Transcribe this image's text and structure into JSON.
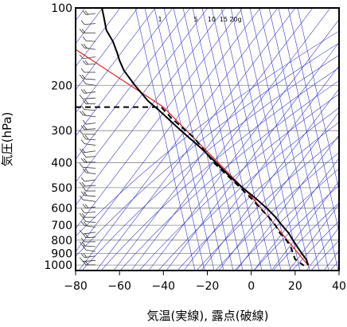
{
  "chart_data": {
    "type": "line",
    "xlabel": "気温(実線), 露点(破線)",
    "ylabel": "気圧(hPa)",
    "xlim": [
      -80,
      40
    ],
    "ylim": [
      1050,
      100
    ],
    "y_scale": "log",
    "x_ticks": [
      -80,
      -60,
      -40,
      -20,
      0,
      20,
      40
    ],
    "y_ticks": [
      100,
      200,
      300,
      400,
      500,
      600,
      700,
      800,
      900,
      1000
    ],
    "mixing_ratio_labels": [
      "1",
      "5",
      "10",
      "15",
      "20g"
    ],
    "colors": {
      "isopleths": "#3a3acc",
      "reference": "#e02020",
      "profile": "#000000",
      "grid": "#888888"
    },
    "series": [
      {
        "style": "solid",
        "points": [
          {
            "t": -68,
            "p": 100
          },
          {
            "t": -67,
            "p": 110
          },
          {
            "t": -66,
            "p": 122
          },
          {
            "t": -63,
            "p": 135
          },
          {
            "t": -61,
            "p": 150
          },
          {
            "t": -60,
            "p": 160
          },
          {
            "t": -58,
            "p": 175
          },
          {
            "t": -53,
            "p": 200
          },
          {
            "t": -47,
            "p": 230
          },
          {
            "t": -42,
            "p": 250
          },
          {
            "t": -32,
            "p": 300
          },
          {
            "t": -23,
            "p": 350
          },
          {
            "t": -16,
            "p": 400
          },
          {
            "t": -10,
            "p": 450
          },
          {
            "t": -4,
            "p": 500
          },
          {
            "t": 2,
            "p": 550
          },
          {
            "t": 7,
            "p": 600
          },
          {
            "t": 11,
            "p": 650
          },
          {
            "t": 14,
            "p": 700
          },
          {
            "t": 17,
            "p": 750
          },
          {
            "t": 19,
            "p": 800
          },
          {
            "t": 21,
            "p": 850
          },
          {
            "t": 23,
            "p": 900
          },
          {
            "t": 25,
            "p": 950
          },
          {
            "t": 26,
            "p": 1000
          }
        ]
      },
      {
        "style": "dashed",
        "points": [
          {
            "t": -80,
            "p": 243
          },
          {
            "t": -41,
            "p": 243
          },
          {
            "t": -36,
            "p": 270
          },
          {
            "t": -26,
            "p": 320
          },
          {
            "t": -17,
            "p": 400
          },
          {
            "t": -5,
            "p": 500
          },
          {
            "t": 0,
            "p": 550
          },
          {
            "t": 4,
            "p": 600
          },
          {
            "t": 8,
            "p": 650
          },
          {
            "t": 11,
            "p": 700
          },
          {
            "t": 13,
            "p": 750
          },
          {
            "t": 16,
            "p": 800
          },
          {
            "t": 18,
            "p": 850
          },
          {
            "t": 19,
            "p": 900
          },
          {
            "t": 20,
            "p": 950
          },
          {
            "t": 24,
            "p": 1005
          }
        ]
      }
    ],
    "reference_line": {
      "color": "red",
      "points": [
        {
          "t": -80,
          "p": 145
        },
        {
          "t": -40,
          "p": 243
        },
        {
          "t": 0,
          "p": 540
        },
        {
          "t": 26,
          "p": 1005
        }
      ]
    },
    "wind_barb_pressures": [
      105,
      115,
      125,
      135,
      145,
      155,
      165,
      178,
      190,
      200,
      212,
      224,
      236,
      250,
      265,
      280,
      295,
      310,
      326,
      342,
      360,
      378,
      398,
      420,
      442,
      466,
      490,
      515,
      540,
      566,
      594,
      622,
      652,
      682,
      712,
      745,
      778,
      812,
      848,
      885,
      922,
      960,
      998
    ]
  }
}
